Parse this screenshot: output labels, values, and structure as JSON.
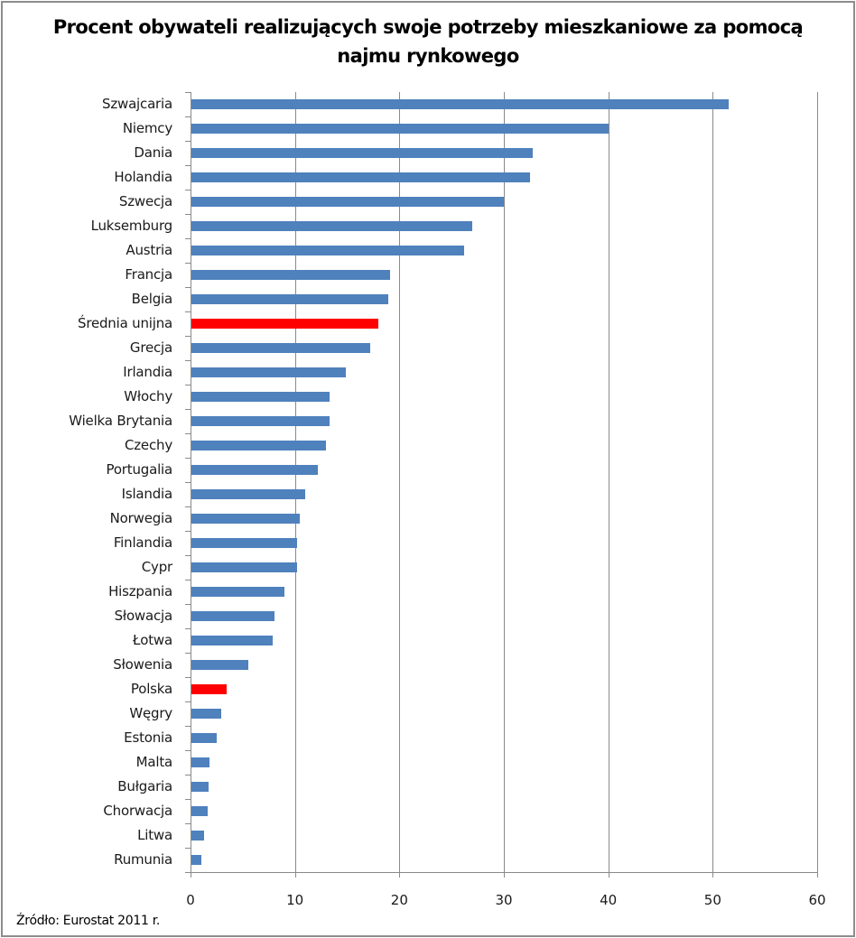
{
  "title_line1": "Procent obywateli realizujących swoje potrzeby mieszkaniowe za pomocą",
  "title_line2": "najmu rynkowego",
  "source": "Źródło: Eurostat 2011 r.",
  "colors": {
    "default_bar": "#4f81bd",
    "highlight_bar": "#ff0000",
    "grid": "#8a8a8a"
  },
  "chart_data": {
    "type": "bar",
    "orientation": "horizontal",
    "title": "Procent obywateli realizujących swoje potrzeby mieszkaniowe za pomocą najmu rynkowego",
    "xlabel": "",
    "ylabel": "",
    "xlim": [
      0,
      60
    ],
    "xticks": [
      "0",
      "10",
      "20",
      "30",
      "40",
      "50",
      "60"
    ],
    "grid": true,
    "legend": null,
    "categories": [
      "Szwajcaria",
      "Niemcy",
      "Dania",
      "Holandia",
      "Szwecja",
      "Luksemburg",
      "Austria",
      "Francja",
      "Belgia",
      "Średnia unijna",
      "Grecja",
      "Irlandia",
      "Włochy",
      "Wielka Brytania",
      "Czechy",
      "Portugalia",
      "Islandia",
      "Norwegia",
      "Finlandia",
      "Cypr",
      "Hiszpania",
      "Słowacja",
      "Łotwa",
      "Słowenia",
      "Polska",
      "Węgry",
      "Estonia",
      "Malta",
      "Bułgaria",
      "Chorwacja",
      "Litwa",
      "Rumunia"
    ],
    "values": [
      51.5,
      40.0,
      32.8,
      32.5,
      30.0,
      27.0,
      26.2,
      19.1,
      18.9,
      18.0,
      17.2,
      14.9,
      13.3,
      13.3,
      13.0,
      12.2,
      11.0,
      10.5,
      10.2,
      10.2,
      9.0,
      8.0,
      7.9,
      5.5,
      3.5,
      2.9,
      2.5,
      1.8,
      1.7,
      1.6,
      1.3,
      1.0
    ],
    "highlighted": [
      "Średnia unijna",
      "Polska"
    ],
    "annotation": "Źródło: Eurostat 2011 r."
  }
}
